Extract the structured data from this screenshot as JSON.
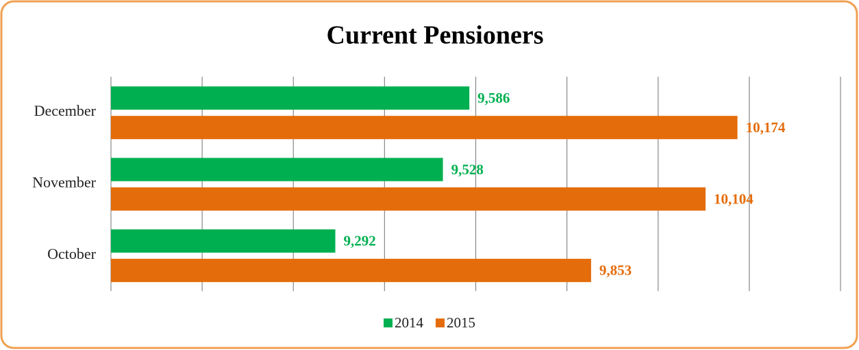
{
  "chart_data": {
    "type": "barh",
    "title": "Current Pensioners",
    "categories": [
      "December",
      "November",
      "October"
    ],
    "series": [
      {
        "name": "2014",
        "color": "#00b050",
        "values": [
          9586,
          9528,
          9292
        ],
        "value_labels": [
          "9,586",
          "9,528",
          "9,292"
        ]
      },
      {
        "name": "2015",
        "color": "#e46c0a",
        "values": [
          10174,
          10104,
          9853
        ],
        "value_labels": [
          "10,174",
          "10,104",
          "9,853"
        ]
      }
    ],
    "xlim": [
      8800,
      10400
    ],
    "xticks": [
      8800,
      9000,
      9200,
      9400,
      9600,
      9800,
      10000,
      10200,
      10400
    ],
    "grid": true,
    "legend": "bottom"
  }
}
